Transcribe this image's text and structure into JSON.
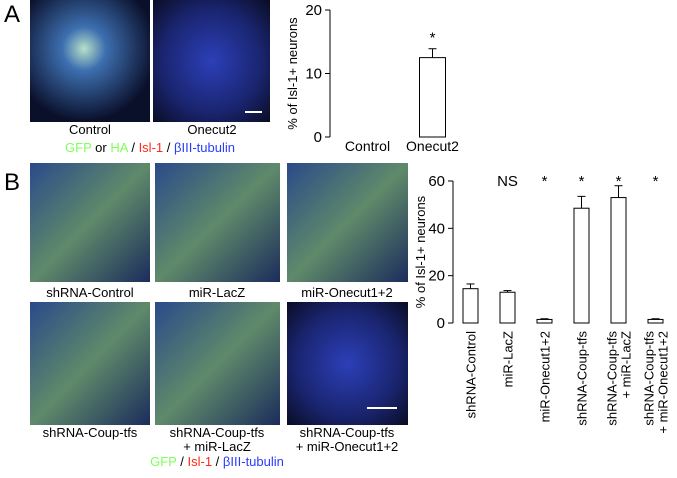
{
  "panels": {
    "a": {
      "label": "A",
      "image_labels": [
        "Control",
        "Onecut2"
      ],
      "legend": [
        "GFP",
        "or",
        "HA",
        "/",
        "Isl-1",
        "/",
        "βIII-tubulin"
      ]
    },
    "b": {
      "label": "B",
      "image_labels": [
        [
          "shRNA-Control"
        ],
        [
          "miR-LacZ"
        ],
        [
          "miR-Onecut1+2"
        ],
        [
          "shRNA-Coup-tfs"
        ],
        [
          "shRNA-Coup-tfs",
          "+ miR-LacZ"
        ],
        [
          "shRNA-Coup-tfs",
          "+ miR-Onecut1+2"
        ]
      ],
      "legend": [
        "GFP",
        "/",
        "Isl-1",
        "/",
        "βIII-tubulin"
      ]
    }
  },
  "chart_data": [
    {
      "type": "bar",
      "y_label": "% of Isl-1+ neurons",
      "categories": [
        [
          "Control"
        ],
        [
          "Onecut2"
        ]
      ],
      "values": [
        0,
        12.5
      ],
      "errors": [
        0,
        1.4
      ],
      "significance": [
        null,
        "*"
      ],
      "color": "#ffffff",
      "ylim": [
        0,
        20
      ],
      "yticks": [
        0,
        10,
        20
      ]
    },
    {
      "type": "bar",
      "y_label": "% of Isl-1+ neurons",
      "categories": [
        [
          "shRNA-Control"
        ],
        [
          "miR-LacZ"
        ],
        [
          "miR-Onecut1+2"
        ],
        [
          "shRNA-Coup-tfs"
        ],
        [
          "shRNA-Coup-tfs",
          "+ miR-LacZ"
        ],
        [
          "shRNA-Coup-tfs",
          "+ miR-Onecut1+2"
        ]
      ],
      "values": [
        14.5,
        13,
        1.5,
        48.5,
        53,
        1.5
      ],
      "errors": [
        2,
        0.7,
        0.3,
        5,
        5,
        0.3
      ],
      "significance": [
        null,
        "NS",
        "*",
        "*",
        "*",
        "*"
      ],
      "color": "#ffffff",
      "ylim": [
        0,
        60
      ],
      "yticks": [
        0,
        20,
        40,
        60
      ]
    }
  ]
}
